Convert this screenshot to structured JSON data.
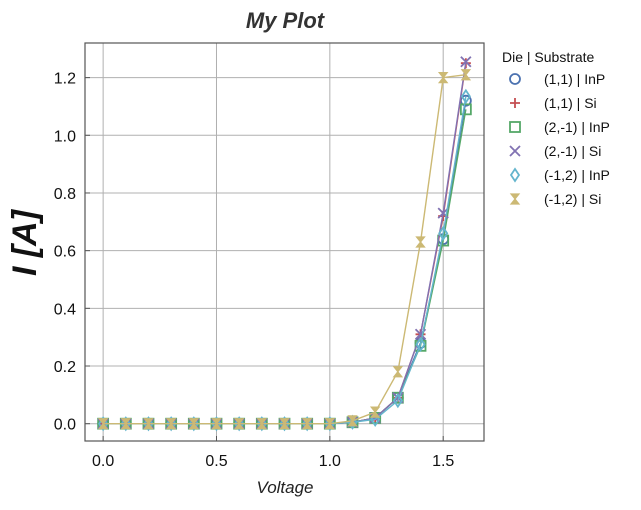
{
  "chart_data": {
    "type": "line",
    "title": "My Plot",
    "xlabel": "Voltage",
    "ylabel": "I [A]",
    "xlim": [
      -0.08,
      1.68
    ],
    "ylim": [
      -0.06,
      1.32
    ],
    "xticks": [
      0.0,
      0.5,
      1.0,
      1.5
    ],
    "xtick_labels": [
      "0.0",
      "0.5",
      "1.0",
      "1.5"
    ],
    "yticks": [
      0.0,
      0.2,
      0.4,
      0.6,
      0.8,
      1.0,
      1.2
    ],
    "ytick_labels": [
      "0.0",
      "0.2",
      "0.4",
      "0.6",
      "0.8",
      "1.0",
      "1.2"
    ],
    "grid": true,
    "legend": {
      "title": "Die | Substrate",
      "placement": "outside-right"
    },
    "x": [
      0.0,
      0.1,
      0.2,
      0.3,
      0.4,
      0.5,
      0.6,
      0.7,
      0.8,
      0.9,
      1.0,
      1.1,
      1.2,
      1.3,
      1.4,
      1.5,
      1.6
    ],
    "series": [
      {
        "name": "(1,1) | InP",
        "color": "#4c72b0",
        "marker": "circle",
        "values": [
          0,
          0,
          0,
          0,
          0,
          0,
          0,
          0,
          0,
          0,
          0,
          0.005,
          0.02,
          0.09,
          0.28,
          0.64,
          1.12
        ]
      },
      {
        "name": "(1,1) | Si",
        "color": "#c44e52",
        "marker": "plus",
        "values": [
          0,
          0,
          0,
          0,
          0,
          0,
          0,
          0,
          0,
          0,
          0,
          0.005,
          0.02,
          0.09,
          0.31,
          0.72,
          1.25
        ]
      },
      {
        "name": "(2,-1) | InP",
        "color": "#55a868",
        "marker": "square",
        "values": [
          0,
          0,
          0,
          0,
          0,
          0,
          0,
          0,
          0,
          0,
          0,
          0.005,
          0.02,
          0.09,
          0.27,
          0.635,
          1.09
        ]
      },
      {
        "name": "(2,-1) | Si",
        "color": "#8172b2",
        "marker": "x",
        "values": [
          0,
          0,
          0,
          0,
          0,
          0,
          0,
          0,
          0,
          0,
          0,
          0.005,
          0.02,
          0.09,
          0.31,
          0.73,
          1.255
        ]
      },
      {
        "name": "(-1,2) | InP",
        "color": "#64b5cd",
        "marker": "diamond",
        "values": [
          0,
          0,
          0,
          0,
          0,
          0,
          0,
          0,
          0,
          0,
          0,
          0.005,
          0.015,
          0.08,
          0.275,
          0.66,
          1.135
        ]
      },
      {
        "name": "(-1,2) | Si",
        "color": "#ccb974",
        "marker": "hourglass",
        "values": [
          0,
          0,
          0,
          0,
          0,
          0,
          0,
          0,
          0,
          0,
          0,
          0.01,
          0.04,
          0.18,
          0.63,
          1.2,
          1.21
        ]
      }
    ]
  }
}
